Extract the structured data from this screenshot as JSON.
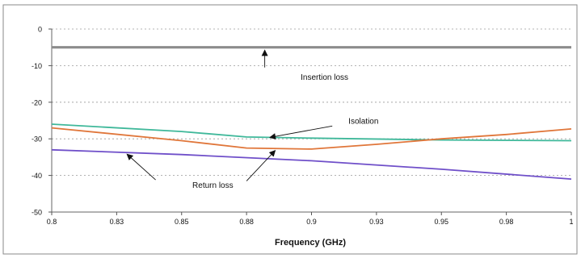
{
  "chart_data": {
    "type": "line",
    "title": "",
    "xlabel": "Frequency (GHz)",
    "ylabel": "",
    "xlim": [
      0.8,
      1.0
    ],
    "ylim": [
      -50,
      0
    ],
    "grid": true,
    "x_ticks": [
      0.8,
      0.825,
      0.85,
      0.875,
      0.9,
      0.925,
      0.95,
      0.975,
      1.0
    ],
    "x_tick_labels": [
      "0.8",
      "0.83",
      "0.85",
      "0.88",
      "0.9",
      "0.93",
      "0.95",
      "0.98",
      "1"
    ],
    "y_ticks": [
      0,
      -10,
      -20,
      -30,
      -40,
      -50
    ],
    "y_tick_labels": [
      "0",
      "-10",
      "-20",
      "-30",
      "-40",
      "-50"
    ],
    "series": [
      {
        "name": "Insertion loss",
        "color": "#8c8c8c",
        "x": [
          0.8,
          1.0
        ],
        "y": [
          -5,
          -5
        ]
      },
      {
        "name": "Isolation",
        "color": "#3fb89a",
        "x": [
          0.8,
          0.85,
          0.875,
          0.9,
          0.95,
          1.0
        ],
        "y": [
          -26,
          -28,
          -29.5,
          -29.8,
          -30.3,
          -30.5
        ]
      },
      {
        "name": "Return loss",
        "color": "#e0763a",
        "x": [
          0.8,
          0.85,
          0.875,
          0.9,
          0.925,
          0.95,
          0.975,
          1.0
        ],
        "y": [
          -27,
          -30.5,
          -32.5,
          -32.8,
          -31.5,
          -30,
          -28.8,
          -27.3
        ]
      },
      {
        "name": "Return loss",
        "color": "#6f4fc9",
        "x": [
          0.8,
          0.85,
          0.9,
          0.95,
          1.0
        ],
        "y": [
          -33,
          -34.3,
          -36,
          -38.3,
          -41
        ]
      }
    ],
    "annotations": [
      {
        "text": "Insertion loss",
        "label_x": 0.905,
        "label_y": -13,
        "arrows": [
          {
            "from_x": 0.882,
            "from_y": -10.5,
            "to_x": 0.882,
            "to_y": -5.8
          }
        ]
      },
      {
        "text": "Isolation",
        "label_x": 0.92,
        "label_y": -25,
        "arrows": [
          {
            "from_x": 0.908,
            "from_y": -26.5,
            "to_x": 0.884,
            "to_y": -29.6
          }
        ]
      },
      {
        "text": "Return loss",
        "label_x": 0.862,
        "label_y": -42.5,
        "arrows": [
          {
            "from_x": 0.84,
            "from_y": -41.2,
            "to_x": 0.829,
            "to_y": -34.2
          },
          {
            "from_x": 0.875,
            "from_y": -41.5,
            "to_x": 0.886,
            "to_y": -33.2
          }
        ]
      }
    ]
  }
}
